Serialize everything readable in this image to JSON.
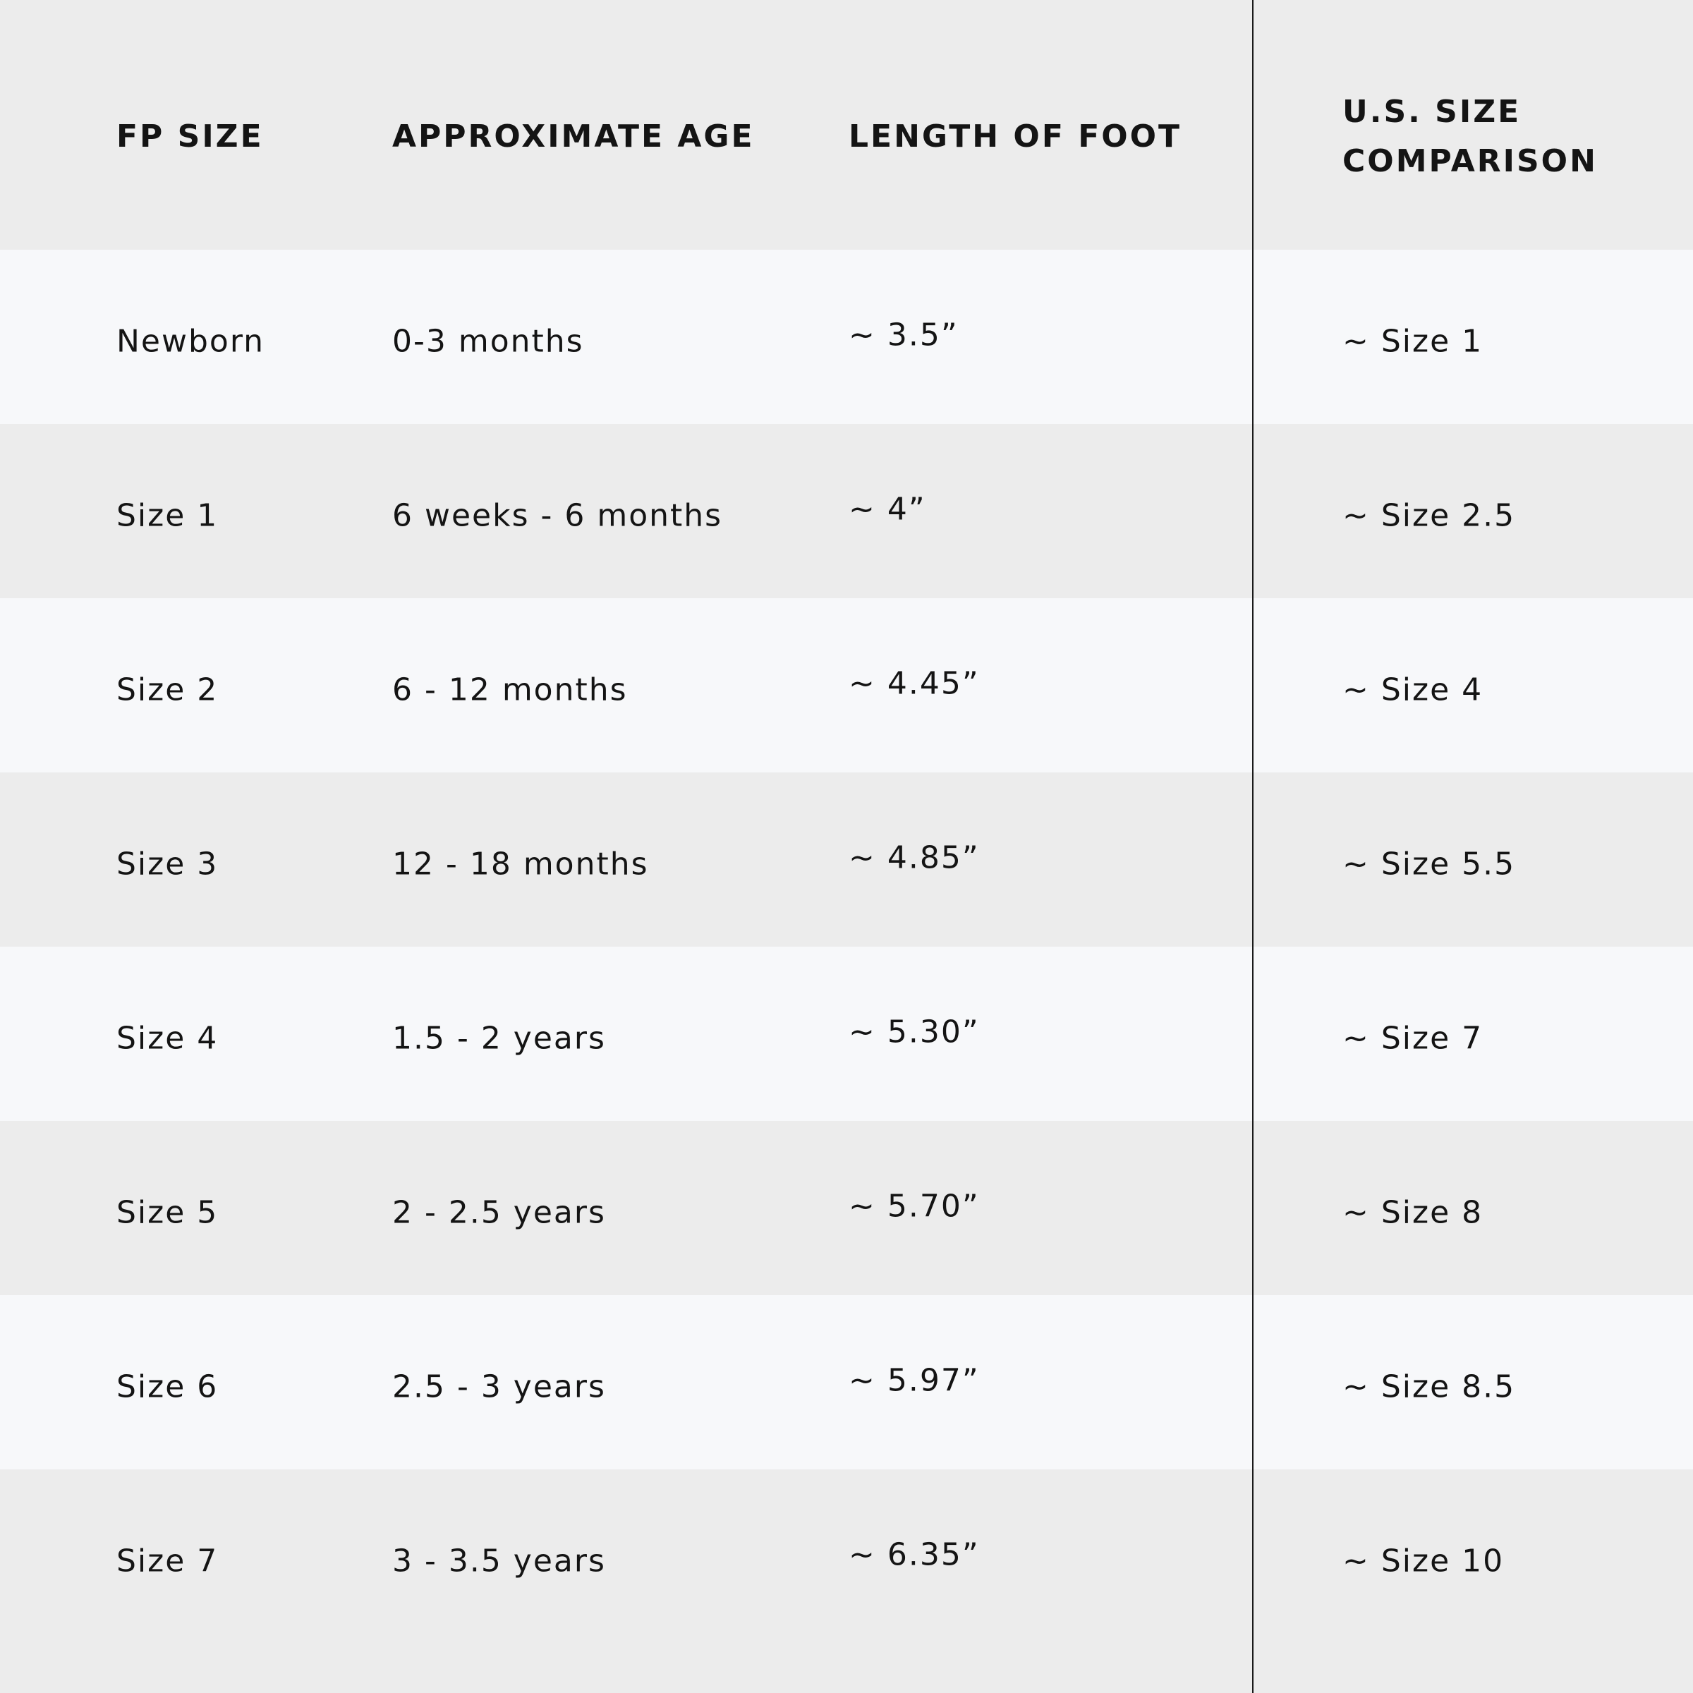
{
  "table": {
    "header": [
      "FP SIZE",
      "APPROXIMATE AGE",
      "LENGTH OF FOOT",
      "U.S. SIZE COMPARISON"
    ],
    "rows": [
      [
        "Newborn",
        "0-3 months",
        "~ 3.5”",
        "~ Size 1"
      ],
      [
        "Size 1",
        "6 weeks - 6 months",
        "~ 4”",
        "~ Size 2.5"
      ],
      [
        "Size 2",
        "6 - 12 months",
        "~ 4.45”",
        "~ Size 4"
      ],
      [
        "Size 3",
        "12 - 18 months",
        "~ 4.85”",
        "~ Size 5.5"
      ],
      [
        "Size 4",
        "1.5 - 2 years",
        "~ 5.30”",
        "~ Size 7"
      ],
      [
        "Size 5",
        "2 - 2.5 years",
        "~ 5.70”",
        "~ Size 8"
      ],
      [
        "Size 6",
        "2.5 - 3 years",
        "~ 5.97”",
        "~ Size 8.5"
      ],
      [
        "Size 7",
        "3 - 3.5 years",
        "~ 6.35”",
        "~ Size 10"
      ]
    ]
  }
}
